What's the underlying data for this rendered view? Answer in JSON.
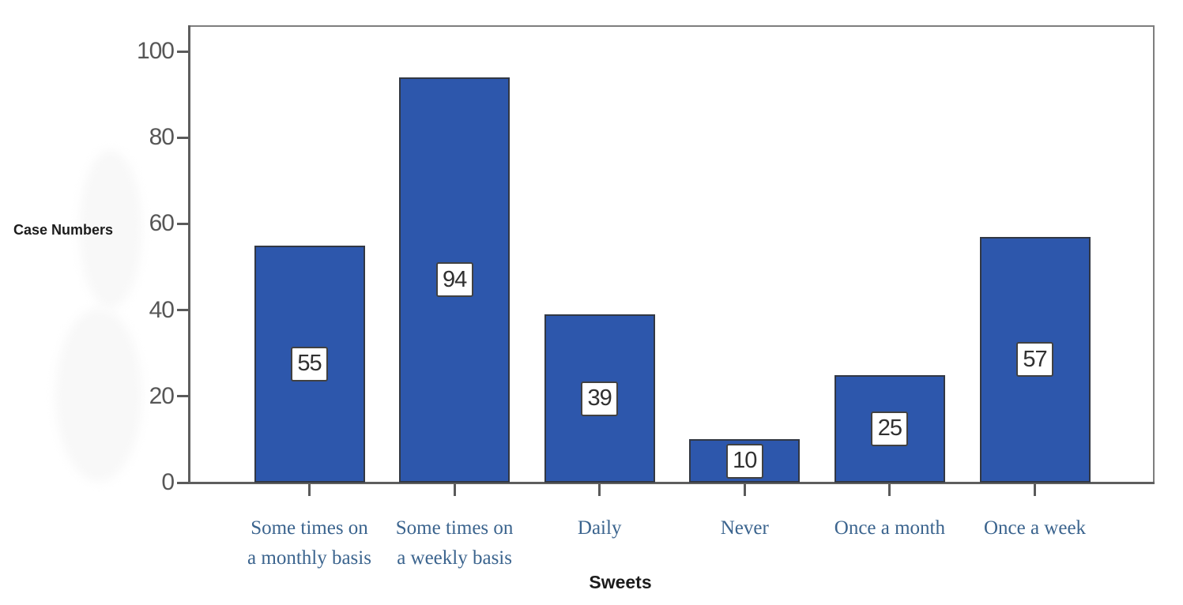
{
  "chart_data": {
    "type": "bar",
    "title": "",
    "xlabel": "Sweets",
    "ylabel": "Case Numbers",
    "categories": [
      "Some times on\na monthly basis",
      "Some times on\na weekly basis",
      "Daily",
      "Never",
      "Once a month",
      "Once a week"
    ],
    "values": [
      55,
      94,
      39,
      10,
      25,
      57
    ],
    "value_labels": [
      "55",
      "94",
      "39",
      "10",
      "25",
      "57"
    ],
    "y_ticks": [
      "0",
      "20",
      "40",
      "60",
      "80",
      "100"
    ],
    "y_tick_values": [
      0,
      20,
      40,
      60,
      80,
      100
    ],
    "ylim": [
      0,
      106
    ],
    "grid": false,
    "legend_position": "none",
    "bar_color": "#2d57ac",
    "bar_border_color": "#323844",
    "category_label_color": "#3b648e",
    "axis_color": "#5e5e5e",
    "tick_label_color": "#575757"
  }
}
